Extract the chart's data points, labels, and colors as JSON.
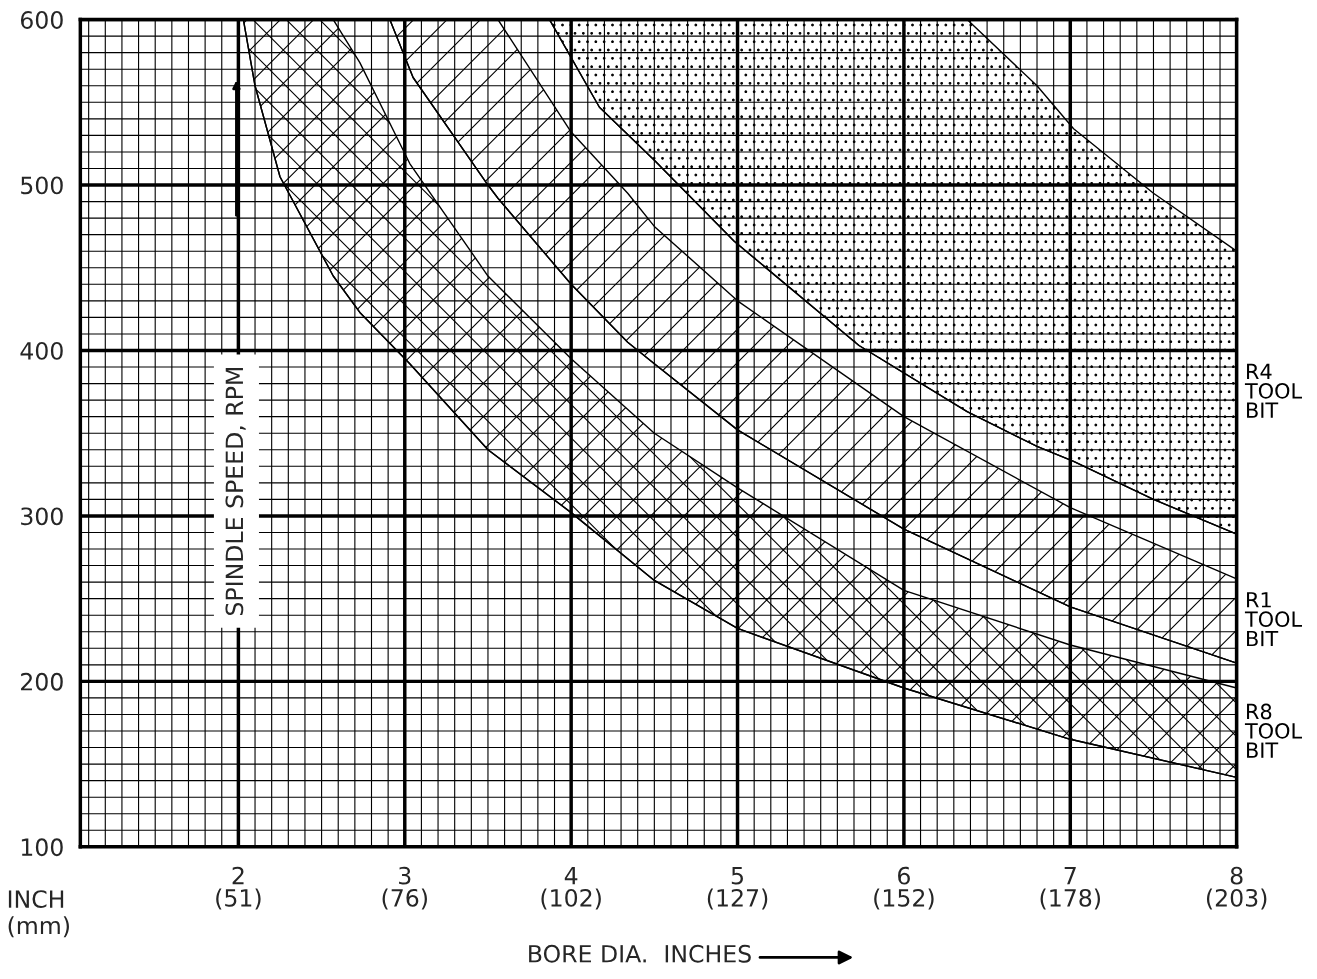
{
  "chart_data": {
    "type": "line",
    "xlabel": "BORE DIA.  INCHES",
    "ylabel": "SPINDLE SPEED, RPM",
    "annotations": [
      "INCH\n(mm)"
    ],
    "xlim": [
      1.05,
      8
    ],
    "ylim": [
      100,
      600
    ],
    "xticks": [
      2,
      3,
      4,
      5,
      6,
      7,
      8
    ],
    "x2lim": [
      26.67,
      203.2
    ],
    "x2ticks": [
      {
        "value": 50.8,
        "label": "(51)"
      },
      {
        "value": 76.2,
        "label": "(76)"
      },
      {
        "value": 101.6,
        "label": "(102)"
      },
      {
        "value": 127,
        "label": "(127)"
      },
      {
        "value": 152.4,
        "label": "(152)"
      },
      {
        "value": 177.8,
        "label": "(178)"
      },
      {
        "value": 203.2,
        "label": "(203)"
      }
    ],
    "yticks": [
      100,
      200,
      300,
      400,
      500,
      600
    ],
    "grid": true,
    "series": [
      {
        "name": "R8 TOOL BIT",
        "color": "#000000",
        "x": [
          2.03,
          2.1,
          2.25,
          2.57,
          2.73,
          3.03,
          3.5,
          4,
          4.5,
          5,
          6,
          7,
          8
        ],
        "values": [
          600,
          560,
          505,
          445,
          423,
          392,
          340,
          302,
          261,
          232,
          196,
          165,
          142
        ],
        "lower": [
          600,
          560,
          505,
          445,
          423,
          392,
          340,
          302,
          261,
          232,
          196,
          165,
          142
        ],
        "upper": [
          600,
          600,
          600,
          600,
          574,
          513,
          445,
          395,
          350,
          317,
          255,
          222,
          196
        ]
      },
      {
        "name": "R1 TOOL BIT",
        "color": "#000000",
        "x": [
          2.91,
          3.05,
          3.5,
          3.56,
          4,
          4.34,
          4.5,
          5,
          6,
          7,
          8
        ],
        "values": [
          600,
          565,
          500,
          492,
          440,
          405,
          392,
          352,
          292,
          245,
          211
        ],
        "lower": [
          600,
          565,
          500,
          492,
          440,
          405,
          392,
          352,
          292,
          245,
          211
        ],
        "upper": [
          600,
          600,
          600,
          600,
          532,
          495,
          475,
          430,
          360,
          305,
          262
        ]
      },
      {
        "name": "R4 TOOL BIT",
        "color": "#000000",
        "x": [
          3.87,
          4.17,
          4.5,
          4.98,
          5.73,
          6.38,
          6.8,
          7.02,
          7.5,
          8
        ],
        "values": [
          600,
          547,
          515,
          466,
          403,
          363,
          342,
          333,
          310,
          289
        ],
        "lower": [
          600,
          547,
          515,
          466,
          403,
          363,
          342,
          333,
          310,
          289
        ],
        "upper": [
          600,
          600,
          600,
          600,
          600,
          600,
          560,
          534,
          495,
          460
        ]
      }
    ]
  }
}
